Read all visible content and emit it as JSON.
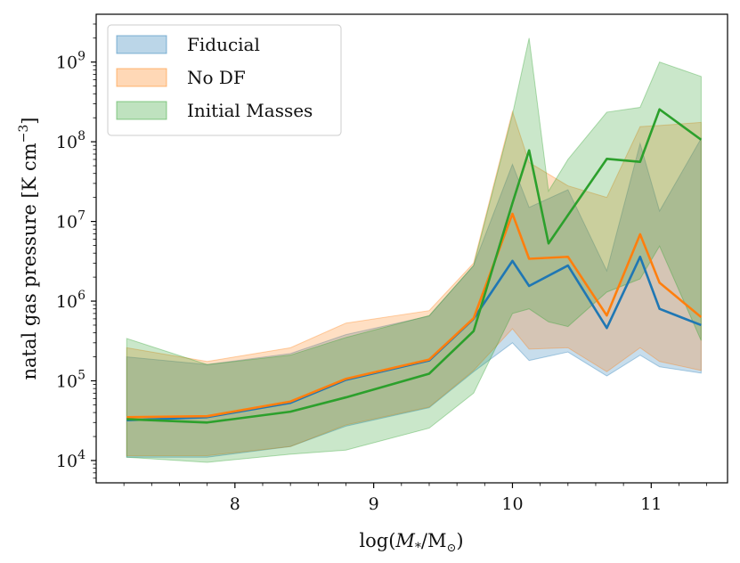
{
  "chart_data": {
    "type": "line",
    "title": "",
    "xlabel_prefix": "log(",
    "xlabel_math": "M",
    "xlabel_sub": "*",
    "xlabel_suffix": "/M",
    "xlabel_sun": "⊙",
    "xlabel_close": ")",
    "ylabel_main": "natal gas pressure [K cm",
    "ylabel_exp": "−3",
    "ylabel_close": "]",
    "yscale": "log",
    "xlim": [
      7.0,
      11.55
    ],
    "ylim_log10": [
      3.72,
      9.6
    ],
    "xticks": [
      8,
      9,
      10,
      11
    ],
    "xtick_labels": [
      "8",
      "9",
      "10",
      "11"
    ],
    "yticks_log10": [
      4,
      5,
      6,
      7,
      8,
      9
    ],
    "ytick_base": "10",
    "ytick_exps": [
      "4",
      "5",
      "6",
      "7",
      "8",
      "9"
    ],
    "legend_position": "top-left",
    "series": [
      {
        "name": "Fiducial",
        "color": "#1f77b4",
        "x": [
          7.22,
          7.8,
          8.4,
          8.8,
          9.4,
          9.72,
          10.0,
          10.12,
          10.4,
          10.68,
          10.92,
          11.06,
          11.36
        ],
        "median": [
          32000.0,
          35000.0,
          53000.0,
          103000.0,
          180000.0,
          600000.0,
          3200000.0,
          1550000.0,
          2800000.0,
          460000.0,
          3600000.0,
          800000.0,
          500000.0
        ],
        "lower": [
          11000.0,
          11000.0,
          15000.0,
          27000.0,
          46000.0,
          130000.0,
          300000.0,
          180000.0,
          230000.0,
          115000.0,
          210000.0,
          150000.0,
          125000.0
        ],
        "upper": [
          200000.0,
          160000.0,
          220000.0,
          380000.0,
          650000.0,
          2800000.0,
          52000000.0,
          15000000.0,
          25000000.0,
          2400000.0,
          95000000.0,
          13500000.0,
          110000000.0
        ]
      },
      {
        "name": "No DF",
        "color": "#ff7f0e",
        "x": [
          7.22,
          7.8,
          8.4,
          8.8,
          9.4,
          9.72,
          10.0,
          10.12,
          10.4,
          10.68,
          10.92,
          11.06,
          11.36
        ],
        "median": [
          35000.0,
          36000.0,
          55000.0,
          106000.0,
          185000.0,
          610000.0,
          12500000.0,
          3400000.0,
          3600000.0,
          660000.0,
          6900000.0,
          1700000.0,
          630000.0
        ],
        "lower": [
          11500.0,
          11500.0,
          15000.0,
          28000.0,
          47000.0,
          135000.0,
          450000.0,
          250000.0,
          260000.0,
          130000.0,
          260000.0,
          175000.0,
          135000.0
        ],
        "upper": [
          260000.0,
          175000.0,
          260000.0,
          530000.0,
          760000.0,
          3000000.0,
          240000000.0,
          55000000.0,
          28000000.0,
          20000000.0,
          155000000.0,
          160000000.0,
          175000000.0
        ]
      },
      {
        "name": "Initial Masses",
        "color": "#2ca02c",
        "x": [
          7.22,
          7.8,
          8.4,
          8.8,
          9.4,
          9.72,
          10.0,
          10.12,
          10.26,
          10.4,
          10.68,
          10.92,
          11.06,
          11.36
        ],
        "median": [
          33000.0,
          30000.0,
          41000.0,
          62000.0,
          123000.0,
          420000.0,
          17000000.0,
          78000000.0,
          5300000.0,
          12000000.0,
          61000000.0,
          56000000.0,
          255000000.0,
          106000000.0
        ],
        "lower": [
          11000.0,
          9500.0,
          12000.0,
          13500.0,
          25500.0,
          70000.0,
          700000.0,
          800000.0,
          550000.0,
          480000.0,
          1300000.0,
          1900000.0,
          4900000.0,
          320000.0
        ],
        "upper": [
          340000.0,
          160000.0,
          210000.0,
          350000.0,
          660000.0,
          2800000.0,
          220000000.0,
          2000000000.0,
          24000000.0,
          60000000.0,
          235000000.0,
          270000000.0,
          1000000000.0,
          660000000.0
        ]
      }
    ]
  }
}
